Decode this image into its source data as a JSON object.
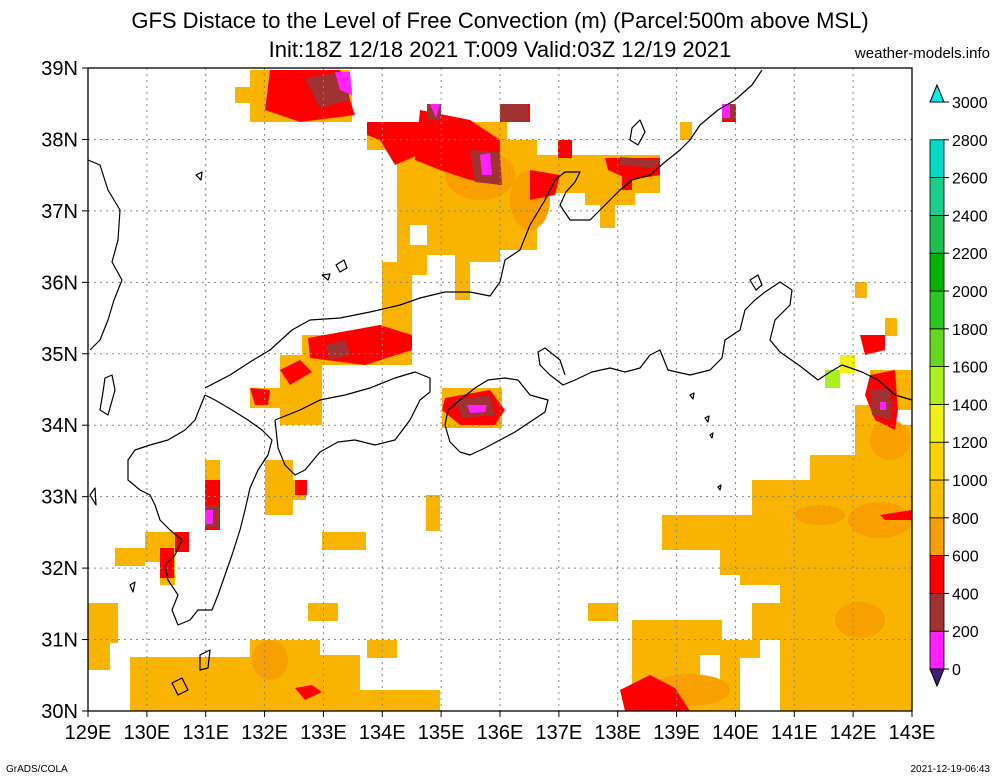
{
  "header": {
    "title": "GFS Distace to the Level of Free Convection (m) (Parcel:500m above MSL)",
    "subtitle": "Init:18Z 12/18 2021 T:009 Valid:03Z 12/19 2021",
    "site": "weather-models.info"
  },
  "footer": {
    "left": "GrADS/COLA",
    "right": "2021-12-19-06:43"
  },
  "map": {
    "lon_labels": [
      "129E",
      "130E",
      "131E",
      "132E",
      "133E",
      "134E",
      "135E",
      "136E",
      "137E",
      "138E",
      "139E",
      "140E",
      "141E",
      "142E",
      "143E"
    ],
    "lat_labels": [
      "30N",
      "31N",
      "32N",
      "33N",
      "34N",
      "35N",
      "36N",
      "37N",
      "38N",
      "39N"
    ]
  },
  "colorbar": {
    "labels": [
      "0",
      "200",
      "400",
      "600",
      "800",
      "1000",
      "1200",
      "1400",
      "1600",
      "1800",
      "2000",
      "2200",
      "2400",
      "2600",
      "2800",
      "3000"
    ],
    "colors": [
      "#3c1e78",
      "#ff22ff",
      "#a03232",
      "#ff0000",
      "#f5a000",
      "#f8be00",
      "#fad200",
      "#f0f014",
      "#aaf01e",
      "#64d81e",
      "#28c81e",
      "#00b400",
      "#1ebe50",
      "#1ecc8c",
      "#00dcc8",
      "#00f0f0"
    ]
  }
}
